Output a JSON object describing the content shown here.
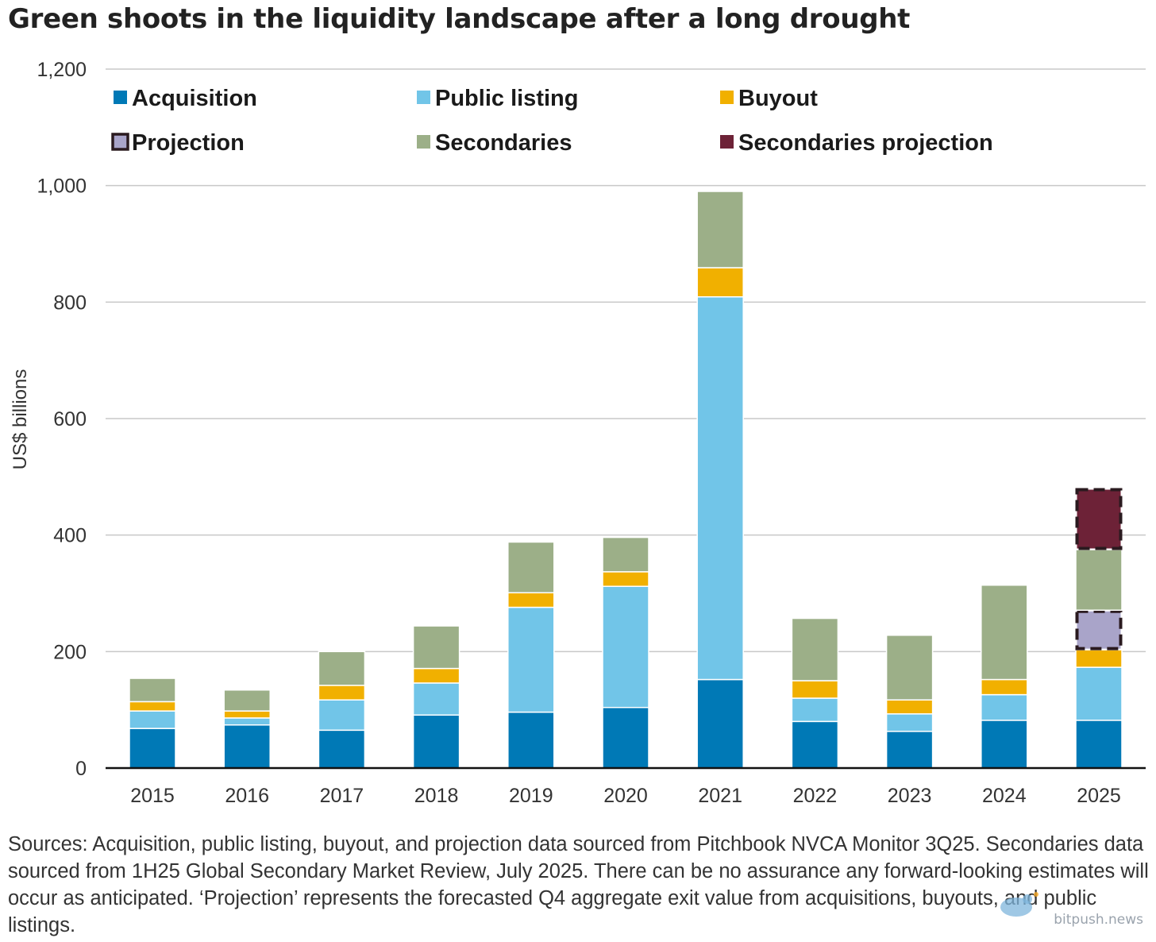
{
  "title": "Green shoots in the liquidity landscape after a long drought",
  "source_note": "Sources: Acquisition, public listing, buyout, and projection data sourced from Pitchbook NVCA Monitor 3Q25. Secondaries data sourced from 1H25 Global Secondary Market Review, July 2025. There can be no assurance any forward-looking estimates will occur as anticipated. ‘Projection’ represents the forecasted Q4 aggregate exit value from acquisitions, buyouts, and public listings.",
  "watermark": "bitpush.news",
  "colors": {
    "acquisition": "#0079b6",
    "public_listing": "#71c5e8",
    "buyout": "#f1b000",
    "projection": "#a9a4c9",
    "secondaries": "#9caf88",
    "secondaries_projection": "#6d2237",
    "grid": "#c8c8c8",
    "axis": "#111111"
  },
  "chart_data": {
    "type": "bar",
    "stacked": true,
    "title": "Green shoots in the liquidity landscape after a long drought",
    "ylabel": "US$ billions",
    "xlabel": "",
    "ylim": [
      0,
      1200
    ],
    "yticks": [
      "0",
      "200",
      "400",
      "600",
      "800",
      "1,000",
      "1,200"
    ],
    "ytick_values": [
      0,
      200,
      400,
      600,
      800,
      1000,
      1200
    ],
    "grid": true,
    "legend_placement": "top-left, inside plot, 3 columns",
    "categories": [
      "2015",
      "2016",
      "2017",
      "2018",
      "2019",
      "2020",
      "2021",
      "2022",
      "2023",
      "2024",
      "2025"
    ],
    "series": [
      {
        "name": "Acquisition",
        "key": "acquisition",
        "values": [
          68,
          74,
          65,
          91,
          96,
          104,
          152,
          80,
          63,
          82,
          82
        ]
      },
      {
        "name": "Public listing",
        "key": "public_listing",
        "values": [
          30,
          12,
          52,
          55,
          180,
          208,
          657,
          40,
          30,
          44,
          91
        ]
      },
      {
        "name": "Buyout",
        "key": "buyout",
        "values": [
          16,
          12,
          25,
          25,
          25,
          25,
          50,
          30,
          24,
          26,
          30
        ]
      },
      {
        "name": "Projection",
        "key": "projection",
        "values": [
          0,
          0,
          0,
          0,
          0,
          0,
          0,
          0,
          0,
          0,
          68
        ]
      },
      {
        "name": "Secondaries",
        "key": "secondaries",
        "values": [
          40,
          36,
          58,
          73,
          87,
          59,
          131,
          107,
          111,
          162,
          104
        ]
      },
      {
        "name": "Secondaries projection",
        "key": "secondaries_projection",
        "values": [
          0,
          0,
          0,
          0,
          0,
          0,
          0,
          0,
          0,
          0,
          105
        ]
      }
    ],
    "dashed_series": [
      "projection",
      "secondaries_projection"
    ]
  }
}
